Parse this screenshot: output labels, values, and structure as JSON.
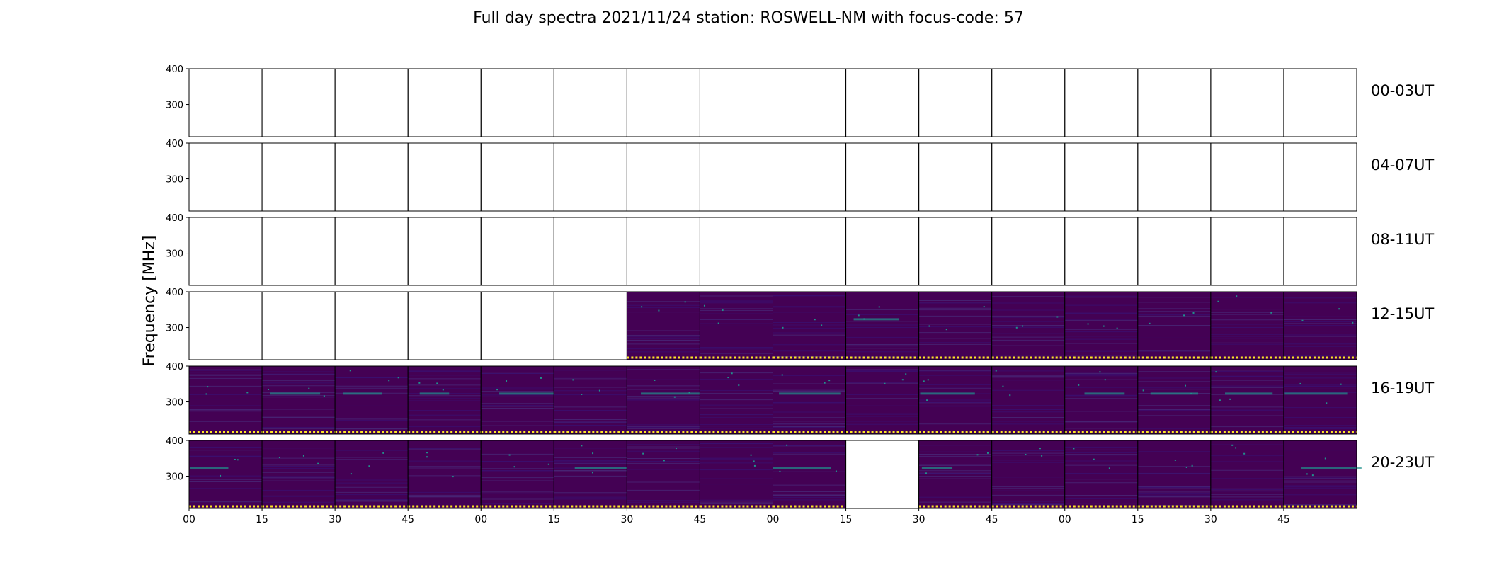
{
  "chart_data": {
    "type": "heatmap",
    "title": "Full day spectra 2021/11/24 station: ROSWELL-NM with focus-code: 57",
    "ylabel": "Frequency [MHz]",
    "xlabel": "",
    "ylim": [
      210,
      400
    ],
    "y_ticks": [
      "400",
      "300"
    ],
    "x_ticks": [
      "00",
      "15",
      "30",
      "45",
      "00",
      "15",
      "30",
      "45",
      "00",
      "15",
      "30",
      "45",
      "00",
      "15",
      "30",
      "45"
    ],
    "rows": [
      {
        "label": "00-03UT",
        "panels": [
          0,
          0,
          0,
          0,
          0,
          0,
          0,
          0,
          0,
          0,
          0,
          0,
          0,
          0,
          0,
          0
        ]
      },
      {
        "label": "04-07UT",
        "panels": [
          0,
          0,
          0,
          0,
          0,
          0,
          0,
          0,
          0,
          0,
          0,
          0,
          0,
          0,
          0,
          0
        ]
      },
      {
        "label": "08-11UT",
        "panels": [
          0,
          0,
          0,
          0,
          0,
          0,
          0,
          0,
          0,
          0,
          0,
          0,
          0,
          0,
          0,
          0
        ]
      },
      {
        "label": "12-15UT",
        "panels": [
          0,
          0,
          0,
          0,
          0,
          0,
          1,
          1,
          1,
          1,
          1,
          1,
          1,
          1,
          1,
          1
        ]
      },
      {
        "label": "16-19UT",
        "panels": [
          1,
          1,
          1,
          1,
          1,
          1,
          1,
          1,
          1,
          1,
          1,
          1,
          1,
          1,
          1,
          1
        ]
      },
      {
        "label": "20-23UT",
        "panels": [
          1,
          1,
          1,
          1,
          1,
          1,
          1,
          1,
          1,
          0,
          1,
          1,
          1,
          1,
          1,
          1
        ]
      }
    ],
    "colormap": "viridis",
    "colors": {
      "background": "#440154",
      "alt": "#3b0f70",
      "bright": "#21918c",
      "marker": "#fde725"
    },
    "grid": false
  }
}
